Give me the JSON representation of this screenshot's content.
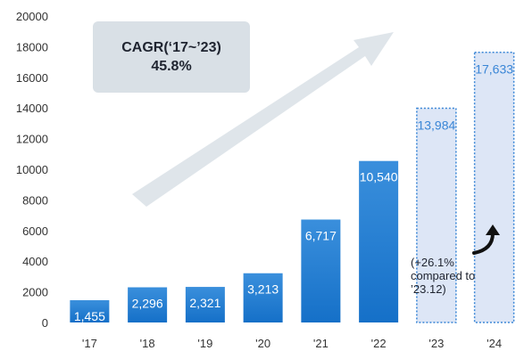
{
  "chart_data": {
    "type": "bar",
    "categories": [
      "'17",
      "'18",
      "'19",
      "'20",
      "'21",
      "'22",
      "'23",
      "'24"
    ],
    "values": [
      1455,
      2296,
      2321,
      3213,
      6717,
      10540,
      13984,
      17633
    ],
    "value_labels": [
      "1,455",
      "2,296",
      "2,321",
      "3,213",
      "6,717",
      "10,540",
      "13,984",
      "17,633"
    ],
    "projected_from_index": 6,
    "ylim": [
      0,
      20000
    ],
    "yticks": [
      0,
      2000,
      4000,
      6000,
      8000,
      10000,
      12000,
      14000,
      16000,
      18000,
      20000
    ],
    "grid": false,
    "title": "",
    "xlabel": "",
    "ylabel": "",
    "annotations": {
      "cagr_line1": "CAGR(‘17~’23)",
      "cagr_line2": "45.8%",
      "growth_note_lines": [
        "(+26.1%",
        "compared to",
        "’23.12)"
      ]
    }
  },
  "colors": {
    "bar_solid": "#1874cd",
    "bar_solid_light": "#3a8fdc",
    "bar_projected_fill": "#dde6f6",
    "bar_projected_border": "#3a86d6",
    "value_label_solid": "#ffffff",
    "value_label_projected": "#3a86d6",
    "axis_text": "#333333",
    "cagr_box": "#d9e0e6",
    "trend_arrow": "#dbe2e8"
  }
}
